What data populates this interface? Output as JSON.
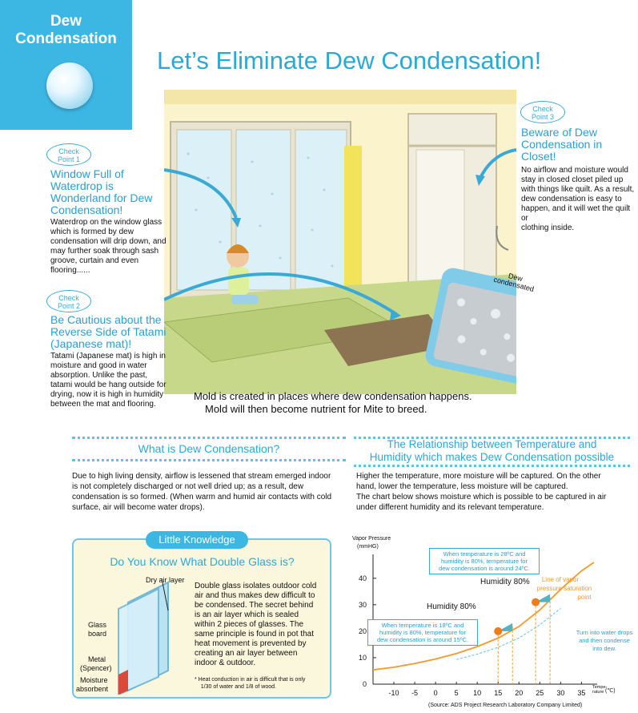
{
  "badge": {
    "line1": "Dew",
    "line2": "Condensation"
  },
  "title": "Let’s Eliminate Dew Condensation!",
  "check_points": [
    {
      "tag1": "Check",
      "tag2": "Point 1",
      "title": [
        "Window Full of",
        "Waterdrop is",
        "Wonderland for Dew",
        "Condensation!"
      ],
      "body": [
        "Waterdrop on the window glass",
        "which is formed by dew",
        "condensation will drip down, and",
        "may further soak through sash",
        "groove, curtain and even",
        "flooring......"
      ]
    },
    {
      "tag1": "Check",
      "tag2": "Point 2",
      "title": [
        "Be Cautious about the",
        "Reverse Side of Tatami",
        "(Japanese mat)!"
      ],
      "body": [
        "Tatami (Japanese mat) is high in",
        "moisture and good in water",
        "absorption.  Unlike the past,",
        "tatami would be hang outside for",
        "drying, now it is high in humidity",
        "between the mat and flooring."
      ]
    },
    {
      "tag1": "Check",
      "tag2": "Point 3",
      "title": [
        "Beware of Dew",
        "Condensation in",
        "Closet!"
      ],
      "body": [
        "No airflow and moisture would",
        "stay in closed closet piled up",
        "with things like quilt.  As a result,",
        "dew condensation is easy to",
        "happen, and it will wet the quilt or",
        "clothing inside."
      ]
    }
  ],
  "photo_label": [
    "Dew",
    "condensated"
  ],
  "mold": [
    "Mold is created in places where dew condensation happens.",
    "Mold will then become nutrient for Mite to breed."
  ],
  "section1": {
    "title": "What is Dew Condensation?",
    "body": [
      "Due to high living density, airflow is lessened that stream emerged indoor",
      "is not completely discharged or not well dried up; as a result, dew",
      "condensation is so formed.  (When warm and humid air contacts with cold",
      "surface, air will become water drops)."
    ]
  },
  "section2": {
    "title": [
      "The Relationship between Temperature and",
      "Humidity which makes Dew Condensation possible"
    ],
    "body": [
      "Higher the temperature, more moisture will be captured.  On the other",
      "hand, lower the temperature, less moisture will be captured.",
      "The chart below shows moisture which is possible to be captured in air",
      "under different humidity and its relevant temperature."
    ]
  },
  "little_knowledge": {
    "tab": "Little Knowledge",
    "title": "Do You Know What Double Glass is?",
    "labels": {
      "dry_air": "Dry air layer",
      "glass_board": [
        "Glass",
        "board"
      ],
      "metal": [
        "Metal",
        "(Spencer)"
      ],
      "moisture": [
        "Moisture",
        "absorbent"
      ]
    },
    "body": [
      "Double glass isolates outdoor cold",
      "air and thus makes dew difficult to",
      "be condensed. The secret behind",
      "is an air layer which is sealed",
      "within 2 pieces of glasses.  The",
      "same principle is found in pot that",
      "heat movement is prevented by",
      "creating an air layer between",
      "indoor & outdoor."
    ],
    "note": [
      "*   Heat conduction in air is difficult that is only",
      "    1/30 of water and 1/8 of wood."
    ]
  },
  "chart_data": {
    "type": "line",
    "ylabel": [
      "Vapor Pressure",
      "(mmHG)"
    ],
    "xlabel": [
      "Tempe-",
      "rature"
    ],
    "xunit": "(℃)",
    "x_ticks": [
      "-10",
      "-5",
      "0",
      "5",
      "10",
      "15",
      "20",
      "25",
      "30",
      "35"
    ],
    "y_ticks": [
      "0",
      "10",
      "20",
      "30",
      "40"
    ],
    "xlim": [
      -15,
      38
    ],
    "ylim": [
      0,
      46
    ],
    "series": [
      {
        "name": "Line of vapor pressure saturation point",
        "legend": [
          "Line of vapor",
          "pressure saturation",
          "point"
        ],
        "x": [
          -15,
          -10,
          -5,
          0,
          5,
          10,
          15,
          20,
          25,
          30,
          35,
          38
        ],
        "y": [
          5.4,
          6.4,
          7.8,
          9.5,
          11.6,
          14.2,
          17.4,
          21.8,
          28.0,
          35.8,
          42.8,
          46.0
        ]
      }
    ],
    "points": [
      {
        "label": "Humidity 80%",
        "x": 15,
        "y": 20,
        "note": [
          "When temperature is 18ºC and",
          "humidity is 80%, temperature for",
          "dew condensation is around 15ºC."
        ]
      },
      {
        "label": "Humidity 80%",
        "x": 24,
        "y": 31,
        "note": [
          "When temperature is 28ºC and",
          "humidity is 80%, temperature for",
          "dew condensation is around 24ºC."
        ]
      }
    ],
    "side_note": [
      "Turn into water drops",
      "and then condense",
      "into dew."
    ],
    "source": "(Source: ADS Project Research Laboratory Company Limited)"
  },
  "colors": {
    "accent": "#3cb6e3",
    "title": "#2aa9d7",
    "curve": "#f39a2c",
    "point": "#f07b1a"
  }
}
